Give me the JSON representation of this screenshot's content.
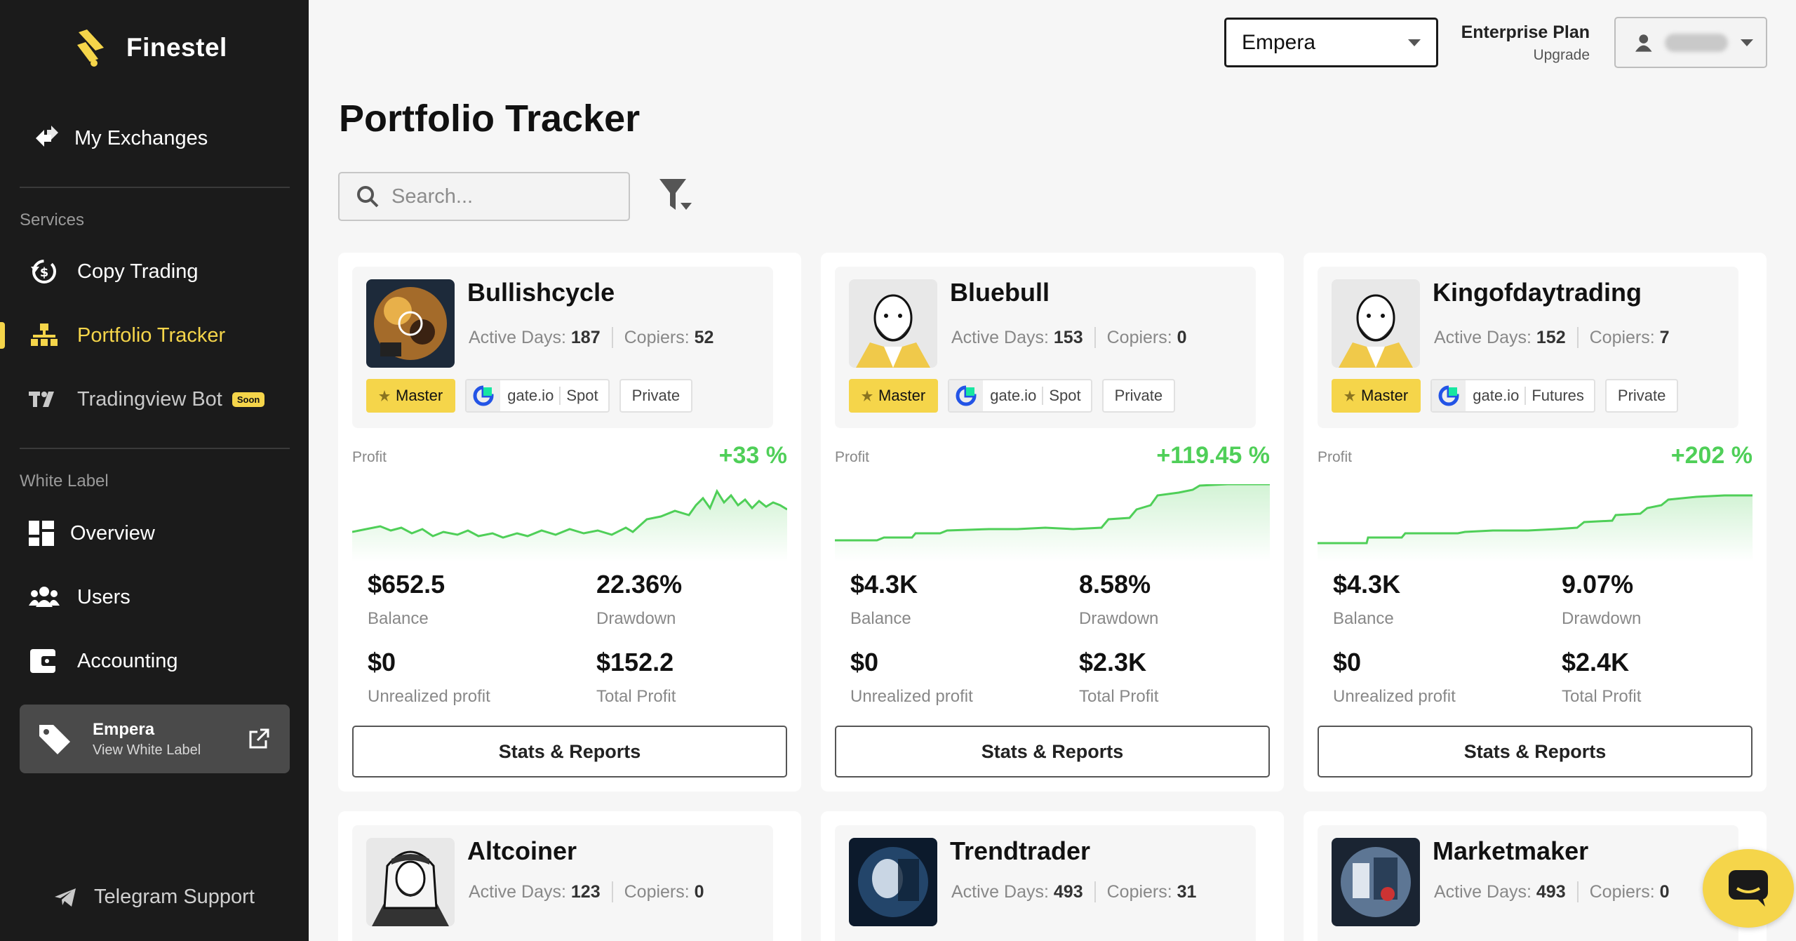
{
  "brand": {
    "name": "Finestel"
  },
  "sidebar": {
    "top_item": {
      "label": "My Exchanges"
    },
    "services_label": "Services",
    "services": [
      {
        "label": "Copy Trading"
      },
      {
        "label": "Portfolio Tracker"
      },
      {
        "label": "Tradingview Bot",
        "badge": "Soon"
      }
    ],
    "white_label_label": "White Label",
    "white_label": [
      {
        "label": "Overview"
      },
      {
        "label": "Users"
      },
      {
        "label": "Accounting"
      }
    ],
    "wl_card": {
      "name": "Empera",
      "sub": "View White Label"
    },
    "telegram": "Telegram Support"
  },
  "header": {
    "workspace_select": "Empera",
    "plan_title": "Enterprise Plan",
    "plan_sub": "Upgrade"
  },
  "page": {
    "title": "Portfolio Tracker",
    "search_placeholder": "Search..."
  },
  "labels": {
    "active_days": "Active Days:",
    "copiers": "Copiers:",
    "profit": "Profit",
    "balance": "Balance",
    "drawdown": "Drawdown",
    "unrealized": "Unrealized profit",
    "total_profit": "Total Profit",
    "stats_button": "Stats & Reports"
  },
  "traders": [
    {
      "name": "Bullishcycle",
      "active_days": "187",
      "copiers": "52",
      "badge": "Master",
      "exchange": "gate.io",
      "market": "Spot",
      "visibility": "Private",
      "profit": "+33 %",
      "balance": "$652.5",
      "drawdown": "22.36%",
      "unrealized": "$0",
      "total_profit": "$152.2",
      "accent": "#4fcf58"
    },
    {
      "name": "Bluebull",
      "active_days": "153",
      "copiers": "0",
      "badge": "Master",
      "exchange": "gate.io",
      "market": "Spot",
      "visibility": "Private",
      "profit": "+119.45 %",
      "balance": "$4.3K",
      "drawdown": "8.58%",
      "unrealized": "$0",
      "total_profit": "$2.3K",
      "accent": "#4fcf58"
    },
    {
      "name": "Kingofdaytrading",
      "active_days": "152",
      "copiers": "7",
      "badge": "Master",
      "exchange": "gate.io",
      "market": "Futures",
      "visibility": "Private",
      "profit": "+202 %",
      "balance": "$4.3K",
      "drawdown": "9.07%",
      "unrealized": "$0",
      "total_profit": "$2.4K",
      "accent": "#4fcf58"
    },
    {
      "name": "Altcoiner",
      "active_days": "123",
      "copiers": "0"
    },
    {
      "name": "Trendtrader",
      "active_days": "493",
      "copiers": "31"
    },
    {
      "name": "Marketmaker",
      "active_days": "493",
      "copiers": "0"
    }
  ]
}
